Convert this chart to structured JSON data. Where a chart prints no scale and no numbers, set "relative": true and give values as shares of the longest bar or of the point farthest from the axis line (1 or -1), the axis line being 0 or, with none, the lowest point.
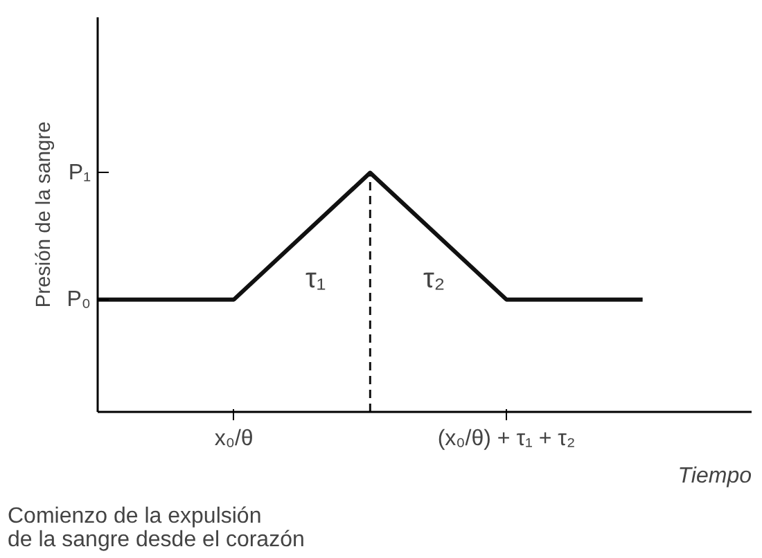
{
  "chart_data": {
    "type": "line",
    "xlabel": "Tiempo",
    "ylabel": "Presión de la sangre",
    "relative": true,
    "categories": [
      null,
      "x₀/θ",
      null,
      "(x₀/θ) + τ₁ + τ₂",
      null
    ],
    "series": [
      {
        "color": "#111111",
        "values": [
          0.47,
          0.47,
          1,
          0.47,
          0.47
        ]
      }
    ],
    "annotations": [
      "P₀",
      "P₁",
      "τ₁",
      "τ₂",
      "Comienzo de la expulsión\nde la sangre desde el corazón"
    ],
    "marker": "none",
    "line_style": "solid"
  }
}
